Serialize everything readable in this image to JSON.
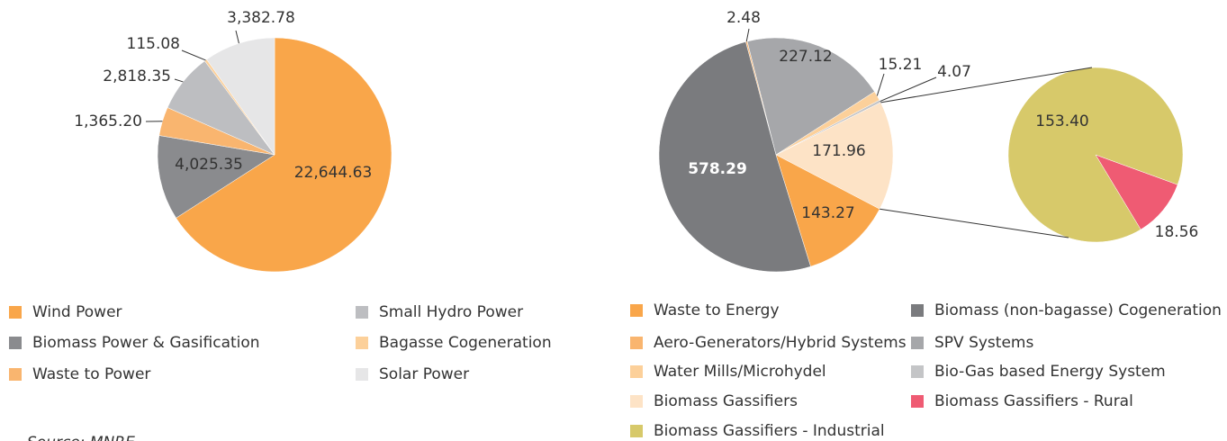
{
  "chart_data": [
    {
      "type": "pie",
      "categories": [
        "Wind Power",
        "Biomass Power & Gasification",
        "Waste to Power",
        "Small Hydro Power",
        "Bagasse Cogeneration",
        "Solar Power"
      ],
      "values": [
        22644.63,
        4025.35,
        1365.2,
        2818.35,
        115.08,
        3382.78
      ],
      "value_labels": [
        "22,644.63",
        "4,025.35",
        "1,365.20",
        "2,818.35",
        "115.08",
        "3,382.78"
      ],
      "colors": [
        "#f9a64a",
        "#8a8b8e",
        "#f9b56f",
        "#bdbec1",
        "#fcd09a",
        "#e6e6e7"
      ]
    },
    {
      "type": "pie",
      "categories": [
        "Aero-Generators/Hybrid Systems",
        "SPV Systems",
        "Water Mills/Microhydel",
        "Bio-Gas based Energy System",
        "Biomass Gassifiers",
        "Waste to Energy",
        "Biomass (non-bagasse) Cogeneration"
      ],
      "values": [
        2.48,
        227.12,
        15.21,
        4.07,
        171.96,
        143.27,
        578.29
      ],
      "value_labels": [
        "2.48",
        "227.12",
        "15.21",
        "4.07",
        "171.96",
        "143.27",
        "578.29"
      ],
      "colors": [
        "#f9b56f",
        "#a6a7aa",
        "#fcd09a",
        "#c4c5c7",
        "#fde3c6",
        "#f9a64a",
        "#7a7b7e"
      ]
    },
    {
      "type": "pie",
      "categories": [
        "Biomass Gassifiers - Rural",
        "Biomass Gassifiers - Industrial"
      ],
      "values": [
        18.56,
        153.4
      ],
      "value_labels": [
        "18.56",
        "153.40"
      ],
      "colors": [
        "#ef5b73",
        "#d7c96a"
      ]
    }
  ],
  "source": "Source: MNRE"
}
